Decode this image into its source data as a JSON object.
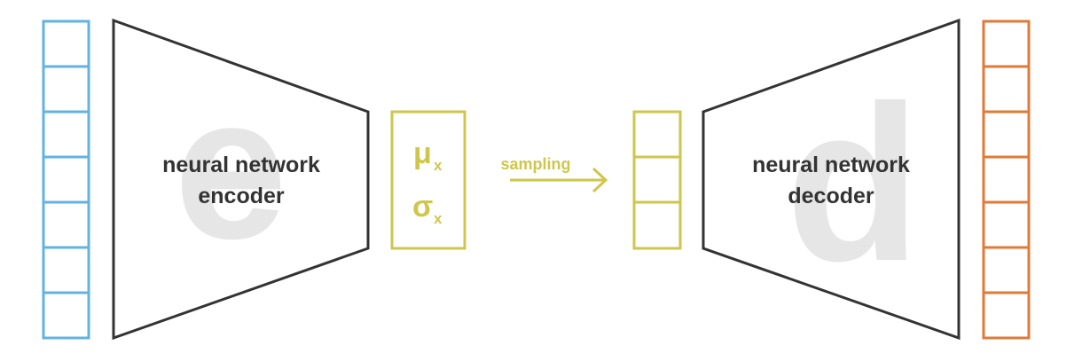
{
  "encoder": {
    "letter": "e",
    "label_line1": "neural network",
    "label_line2": "encoder"
  },
  "decoder": {
    "letter": "d",
    "label_line1": "neural network",
    "label_line2": "decoder"
  },
  "latent_params": {
    "mu": "μ",
    "sigma": "σ",
    "subscript": "x"
  },
  "sampling": {
    "label": "sampling"
  },
  "colors": {
    "input": "#62b3e2",
    "output": "#e07a38",
    "latent": "#cfc64d",
    "network": "#333333",
    "watermark": "#e6e6e6",
    "text": "#333333"
  },
  "input_vector": {
    "cells": 7
  },
  "latent_vector": {
    "cells": 3
  },
  "output_vector": {
    "cells": 7
  }
}
